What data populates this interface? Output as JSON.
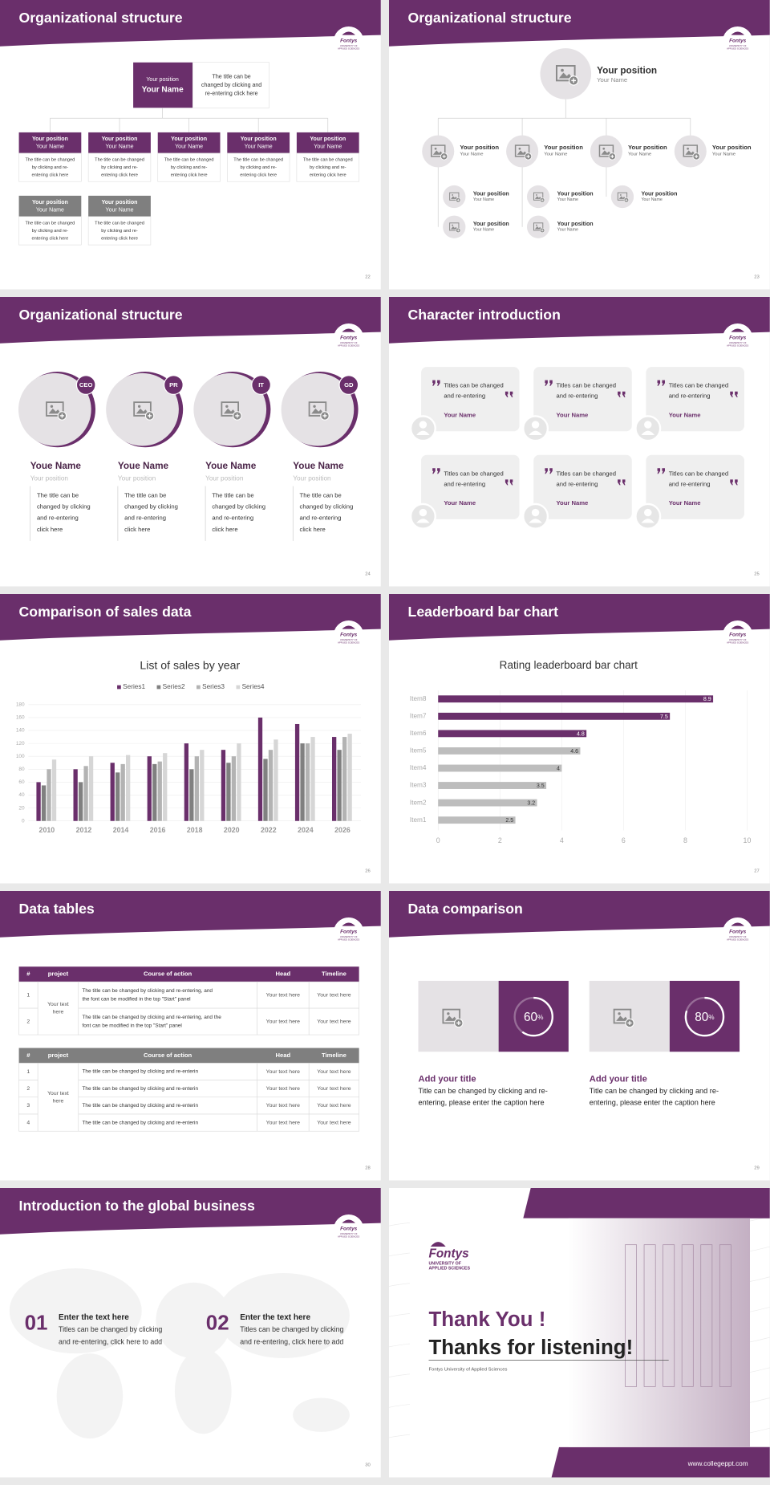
{
  "logo": {
    "name": "Fontys",
    "lines": [
      "UNIVERSITY OF",
      "APPLIED SCIENCES"
    ]
  },
  "slides": [
    {
      "title": "Organizational structure",
      "page": "22",
      "top": {
        "position": "Your position",
        "name": "Your Name",
        "desc": [
          "The title can be",
          "changed by clicking and",
          "re-entering click here"
        ]
      },
      "cards": [
        {
          "position": "Your position",
          "name": "Your Name",
          "desc": [
            "The title can be changed",
            "by clicking and re-",
            "entering click here"
          ]
        },
        {
          "position": "Your position",
          "name": "Your Name",
          "desc": [
            "The title can be changed",
            "by clicking and re-",
            "entering click here"
          ]
        },
        {
          "position": "Your position",
          "name": "Your Name",
          "desc": [
            "The title can be changed",
            "by clicking and re-",
            "entering click here"
          ]
        },
        {
          "position": "Your position",
          "name": "Your Name",
          "desc": [
            "The title can be changed",
            "by clicking and re-",
            "entering click here"
          ]
        },
        {
          "position": "Your position",
          "name": "Your Name",
          "desc": [
            "The title can be changed",
            "by clicking and re-",
            "entering click here"
          ]
        },
        {
          "position": "Your position",
          "name": "Your Name",
          "desc": [
            "The title can be changed",
            "by clicking and re-",
            "entering click here"
          ]
        },
        {
          "position": "Your position",
          "name": "Your Name",
          "desc": [
            "The title can be changed",
            "by clicking and re-",
            "entering click here"
          ]
        }
      ]
    },
    {
      "title": "Organizational structure",
      "page": "23",
      "top": {
        "position": "Your position",
        "name": "Your Name"
      },
      "nodes": [
        {
          "position": "Your position",
          "name": "Your Name"
        },
        {
          "position": "Your position",
          "name": "Your Name"
        },
        {
          "position": "Your position",
          "name": "Your Name"
        },
        {
          "position": "Your position",
          "name": "Your Name"
        }
      ],
      "subnodes": [
        {
          "position": "Your position",
          "name": "Your Name"
        },
        {
          "position": "Your position",
          "name": "Your Name"
        },
        {
          "position": "Your position",
          "name": "Your Name"
        },
        {
          "position": "Your position",
          "name": "Your Name"
        },
        {
          "position": "Your position",
          "name": "Your Name"
        }
      ]
    },
    {
      "title": "Organizational structure",
      "page": "24",
      "people": [
        {
          "badge": "CEO",
          "name": "Youe Name",
          "position": "Your position",
          "desc": [
            "The title can be",
            "changed by clicking",
            "and re-entering",
            "click here"
          ]
        },
        {
          "badge": "PR",
          "name": "Youe Name",
          "position": "Your position",
          "desc": [
            "The title can be",
            "changed by clicking",
            "and re-entering",
            "click here"
          ]
        },
        {
          "badge": "IT",
          "name": "Youe Name",
          "position": "Your position",
          "desc": [
            "The title can be",
            "changed by clicking",
            "and re-entering",
            "click here"
          ]
        },
        {
          "badge": "GD",
          "name": "Youe Name",
          "position": "Your position",
          "desc": [
            "The title can be",
            "changed by clicking",
            "and re-entering",
            "click here"
          ]
        }
      ]
    },
    {
      "title": "Character introduction",
      "page": "25",
      "cards": [
        {
          "lines": [
            "Titles can be changed",
            "and re-entering"
          ],
          "name": "Your Name"
        },
        {
          "lines": [
            "Titles can be changed",
            "and re-entering"
          ],
          "name": "Your Name"
        },
        {
          "lines": [
            "Titles can be changed",
            "and re-entering"
          ],
          "name": "Your Name"
        },
        {
          "lines": [
            "Titles can be changed",
            "and re-entering"
          ],
          "name": "Your Name"
        },
        {
          "lines": [
            "Titles can be changed",
            "and re-entering"
          ],
          "name": "Your Name"
        },
        {
          "lines": [
            "Titles can be changed",
            "and re-entering"
          ],
          "name": "Your Name"
        }
      ]
    },
    {
      "title": "Comparison of sales data",
      "page": "26"
    },
    {
      "title": "Leaderboard bar chart",
      "page": "27"
    },
    {
      "title": "Data tables",
      "page": "28",
      "table1": {
        "header": [
          "#",
          "project",
          "Course of action",
          "Head",
          "Timeline"
        ],
        "project": [
          "Your text",
          "here"
        ],
        "rows": [
          {
            "num": "1",
            "course": [
              "The title can be changed by clicking and re-entering, and",
              "the font can be modified in the top \"Start\" panel"
            ],
            "head": "Your text here",
            "timeline": "Your text here"
          },
          {
            "num": "2",
            "course": [
              "The title can be changed by clicking and re-entering, and the",
              "font can be modified in the top \"Start\" panel"
            ],
            "head": "Your text here",
            "timeline": "Your text here"
          }
        ]
      },
      "table2": {
        "header": [
          "#",
          "project",
          "Course of action",
          "Head",
          "Timeline"
        ],
        "project": [
          "Your text",
          "here"
        ],
        "rows": [
          {
            "num": "1",
            "course": [
              "The title can be changed by clicking and re-enterin"
            ],
            "head": "Your text here",
            "timeline": "Your text here"
          },
          {
            "num": "2",
            "course": [
              "The title can be changed by clicking and re-enterin"
            ],
            "head": "Your text here",
            "timeline": "Your text here"
          },
          {
            "num": "3",
            "course": [
              "The title can be changed by clicking and re-enterin"
            ],
            "head": "Your text here",
            "timeline": "Your text here"
          },
          {
            "num": "4",
            "course": [
              "The title can be changed by clicking and re-enterin"
            ],
            "head": "Your text here",
            "timeline": "Your text here"
          }
        ]
      }
    },
    {
      "title": "Data comparison",
      "page": "29",
      "items": [
        {
          "value": 60,
          "unit": "%",
          "title": "Add your title",
          "desc": [
            "Title can be changed by clicking and re-",
            "entering, please enter the caption here"
          ]
        },
        {
          "value": 80,
          "unit": "%",
          "title": "Add your title",
          "desc": [
            "Title can be changed by clicking and re-",
            "entering, please enter the caption here"
          ]
        }
      ]
    },
    {
      "title": "Introduction to the global business",
      "page": "30",
      "items": [
        {
          "num": "01",
          "title": "Enter the text here",
          "desc": [
            "Titles can be changed by clicking",
            "and re-entering, click here to add"
          ]
        },
        {
          "num": "02",
          "title": "Enter the text here",
          "desc": [
            "Titles can be changed by clicking",
            "and re-entering, click here to add"
          ]
        }
      ]
    },
    {
      "thanks": "Thank You !",
      "listening": "Thanks for listening!",
      "org": "Fontys University of Applied Sciences",
      "url": "www.collegeppt.com"
    }
  ],
  "chart_data": [
    {
      "type": "bar",
      "title": "List of sales by year",
      "categories": [
        "2010",
        "2012",
        "2014",
        "2016",
        "2018",
        "2020",
        "2022",
        "2024",
        "2026"
      ],
      "series": [
        {
          "name": "Series1",
          "color": "#6a2f6b",
          "values": [
            60,
            80,
            90,
            100,
            120,
            110,
            160,
            150,
            130
          ]
        },
        {
          "name": "Series2",
          "color": "#808080",
          "values": [
            55,
            60,
            75,
            88,
            80,
            90,
            96,
            120,
            110
          ]
        },
        {
          "name": "Series3",
          "color": "#b3b3b3",
          "values": [
            80,
            85,
            88,
            92,
            100,
            100,
            110,
            120,
            130
          ]
        },
        {
          "name": "Series4",
          "color": "#d6d6d6",
          "values": [
            95,
            100,
            102,
            105,
            110,
            120,
            126,
            130,
            135
          ]
        }
      ],
      "ylim": [
        0,
        180
      ],
      "yticks": [
        0,
        20,
        40,
        60,
        80,
        100,
        120,
        140,
        160,
        180
      ],
      "grid": true,
      "legend": "top"
    },
    {
      "type": "barh",
      "title": "Rating leaderboard bar chart",
      "categories": [
        "Item8",
        "Item7",
        "Item6",
        "Item5",
        "Item4",
        "Item3",
        "Item2",
        "Item1"
      ],
      "values": [
        8.9,
        7.5,
        4.8,
        4.6,
        4,
        3.5,
        3.2,
        2.5
      ],
      "colors": [
        "#6a2f6b",
        "#6a2f6b",
        "#6a2f6b",
        "#bdbdbd",
        "#bdbdbd",
        "#bdbdbd",
        "#bdbdbd",
        "#bdbdbd"
      ],
      "xlim": [
        0,
        10
      ],
      "xticks": [
        0,
        2,
        4,
        6,
        8,
        10
      ],
      "grid": true
    }
  ]
}
